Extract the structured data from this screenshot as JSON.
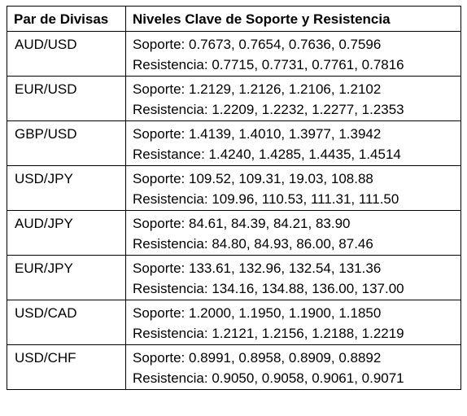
{
  "table": {
    "headers": [
      "Par de Divisas",
      "Niveles Clave de Soporte y Resistencia"
    ],
    "rows": [
      {
        "pair": "AUD/USD",
        "support": "Soporte: 0.7673, 0.7654, 0.7636, 0.7596",
        "resistance": "Resistencia: 0.7715, 0.7731, 0.7761, 0.7816"
      },
      {
        "pair": "EUR/USD",
        "support": "Soporte: 1.2129, 1.2126, 1.2106, 1.2102",
        "resistance": "Resistencia: 1.2209, 1.2232, 1.2277, 1.2353"
      },
      {
        "pair": "GBP/USD",
        "support": "Soporte: 1.4139, 1.4010, 1.3977, 1.3942",
        "resistance": "Resistance: 1.4240, 1.4285, 1.4435, 1.4514"
      },
      {
        "pair": "USD/JPY",
        "support": "Soporte: 109.52, 109.31, 19.03, 108.88",
        "resistance": "Resistencia: 109.96, 110.53, 111.31, 111.50"
      },
      {
        "pair": "AUD/JPY",
        "support": "Soporte: 84.61, 84.39, 84.21, 83.90",
        "resistance": "Resistencia: 84.80, 84.93, 86.00, 87.46"
      },
      {
        "pair": "EUR/JPY",
        "support": "Soporte: 133.61, 132.96, 132.54, 131.36",
        "resistance": "Resistencia: 134.16, 134.88, 136.00, 137.00"
      },
      {
        "pair": "USD/CAD",
        "support": "Soporte: 1.2000, 1.1950, 1.1900, 1.1850",
        "resistance": "Resistencia: 1.2121, 1.2156, 1.2188, 1.2219"
      },
      {
        "pair": "USD/CHF",
        "support": "Soporte: 0.8991, 0.8958, 0.8909, 0.8892",
        "resistance": "Resistencia: 0.9050, 0.9058, 0.9061, 0.9071"
      }
    ]
  }
}
